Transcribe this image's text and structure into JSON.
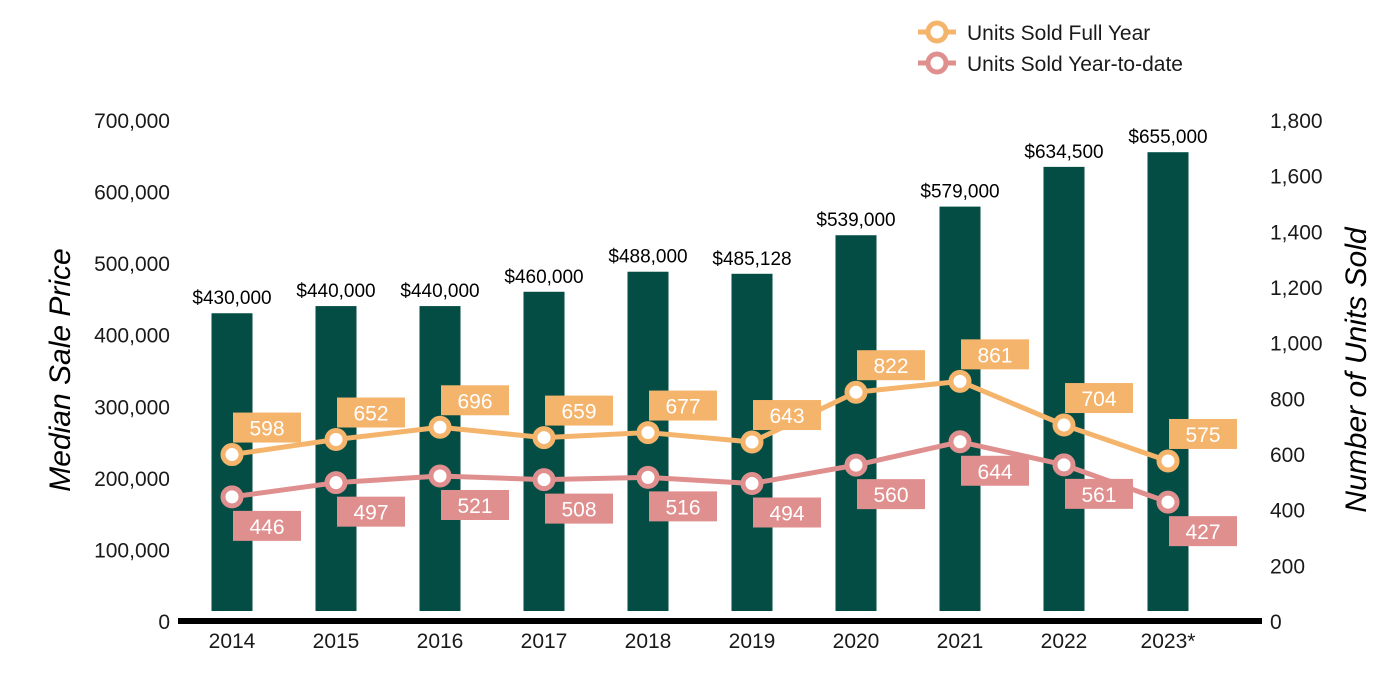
{
  "chart_data": {
    "type": "bar",
    "categories": [
      "2014",
      "2015",
      "2016",
      "2017",
      "2018",
      "2019",
      "2020",
      "2021",
      "2022",
      "2023*"
    ],
    "bar_series": {
      "values": [
        430000,
        440000,
        440000,
        460000,
        488000,
        485128,
        539000,
        579000,
        634500,
        655000
      ],
      "labels": [
        "$430,000",
        "$440,000",
        "$440,000",
        "$460,000",
        "$488,000",
        "$485,128",
        "$539,000",
        "$579,000",
        "$634,500",
        "$655,000"
      ],
      "color": "#034d45"
    },
    "line_series": [
      {
        "name": "Units Sold Full Year",
        "values": [
          598,
          652,
          696,
          659,
          677,
          643,
          822,
          861,
          704,
          575
        ],
        "labels": [
          "598",
          "652",
          "696",
          "659",
          "677",
          "643",
          "822",
          "861",
          "704",
          "575"
        ],
        "color": "#f4b46c",
        "label_position": "above"
      },
      {
        "name": "Units Sold Year-to-date",
        "values": [
          446,
          497,
          521,
          508,
          516,
          494,
          560,
          644,
          561,
          427
        ],
        "labels": [
          "446",
          "497",
          "521",
          "508",
          "516",
          "494",
          "560",
          "644",
          "561",
          "427"
        ],
        "color": "#e08f8f",
        "label_position": "below"
      }
    ],
    "ylabel": "Median Sale Price",
    "y2label": "Number of Units Sold",
    "ylim": [
      0,
      700000
    ],
    "y2lim": [
      0,
      1800
    ],
    "y_ticks": [
      "0",
      "100,000",
      "200,000",
      "300,000",
      "400,000",
      "500,000",
      "600,000",
      "700,000"
    ],
    "y2_ticks": [
      "0",
      "200",
      "400",
      "600",
      "800",
      "1,000",
      "1,200",
      "1,400",
      "1,600",
      "1,800"
    ],
    "grid": false,
    "legend_position": "top-right"
  }
}
